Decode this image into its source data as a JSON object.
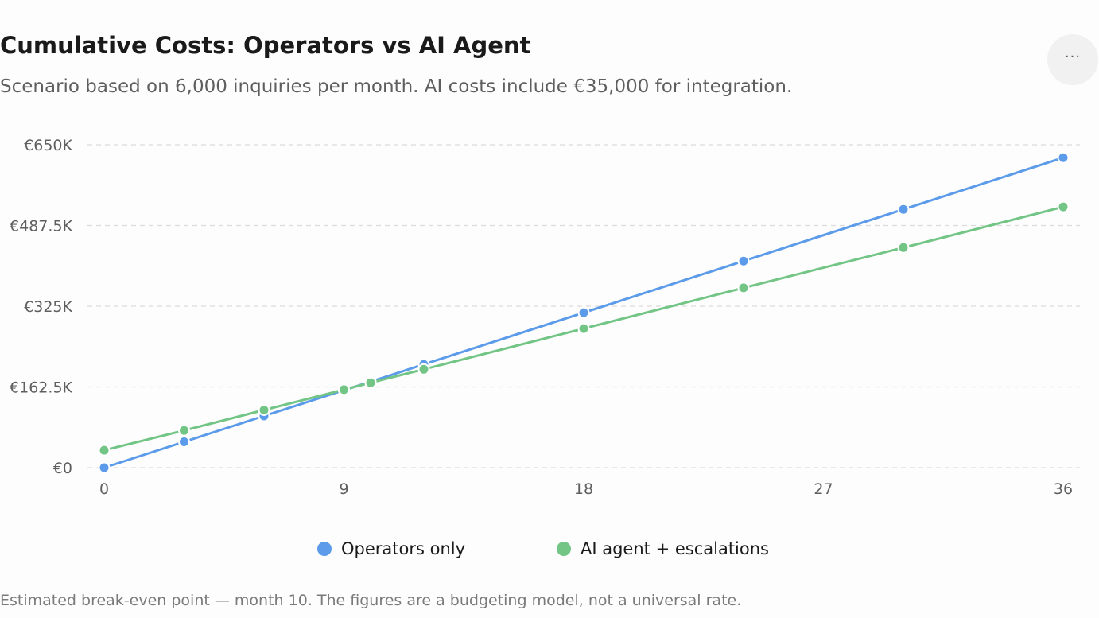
{
  "header": {
    "title": "Cumulative Costs: Operators vs AI Agent",
    "subtitle": "Scenario based on 6,000 inquiries per month. AI costs include €35,000 for integration.",
    "more_label": "···"
  },
  "footnote": "Estimated break-even point — month 10. The figures are a budgeting model, not a universal rate.",
  "colors": {
    "operators": "#5b9bea",
    "ai": "#72c585",
    "grid": "#dcdcdc",
    "tick_text": "#5f5f5f"
  },
  "chart_data": {
    "type": "line",
    "title": "Cumulative Costs: Operators vs AI Agent",
    "subtitle": "Scenario based on 6,000 inquiries per month. AI costs include €35,000 for integration.",
    "xlabel": "",
    "ylabel": "",
    "xlim": [
      0,
      36
    ],
    "ylim": [
      0,
      650000
    ],
    "x_ticks": [
      0,
      9,
      18,
      27,
      36
    ],
    "x_tick_labels": [
      "0",
      "9",
      "18",
      "27",
      "36"
    ],
    "y_ticks": [
      0,
      162500,
      325000,
      487500,
      650000
    ],
    "y_tick_labels": [
      "€0",
      "€162.5K",
      "€325K",
      "€487.5K",
      "€650K"
    ],
    "grid": true,
    "legend_position": "bottom-center",
    "series": [
      {
        "name": "Operators only",
        "color": "#5b9bea",
        "points": [
          {
            "x": 0,
            "y": 0
          },
          {
            "x": 3,
            "y": 52000
          },
          {
            "x": 6,
            "y": 104000
          },
          {
            "x": 9,
            "y": 156000
          },
          {
            "x": 10,
            "y": 173000
          },
          {
            "x": 12,
            "y": 208000
          },
          {
            "x": 18,
            "y": 312000
          },
          {
            "x": 24,
            "y": 416000
          },
          {
            "x": 30,
            "y": 520000
          },
          {
            "x": 36,
            "y": 624000
          }
        ]
      },
      {
        "name": "AI agent + escalations",
        "color": "#72c585",
        "points": [
          {
            "x": 0,
            "y": 35000
          },
          {
            "x": 3,
            "y": 75000
          },
          {
            "x": 6,
            "y": 116000
          },
          {
            "x": 9,
            "y": 157000
          },
          {
            "x": 10,
            "y": 171000
          },
          {
            "x": 12,
            "y": 198000
          },
          {
            "x": 18,
            "y": 280000
          },
          {
            "x": 24,
            "y": 362000
          },
          {
            "x": 30,
            "y": 443000
          },
          {
            "x": 36,
            "y": 525000
          }
        ]
      }
    ]
  }
}
